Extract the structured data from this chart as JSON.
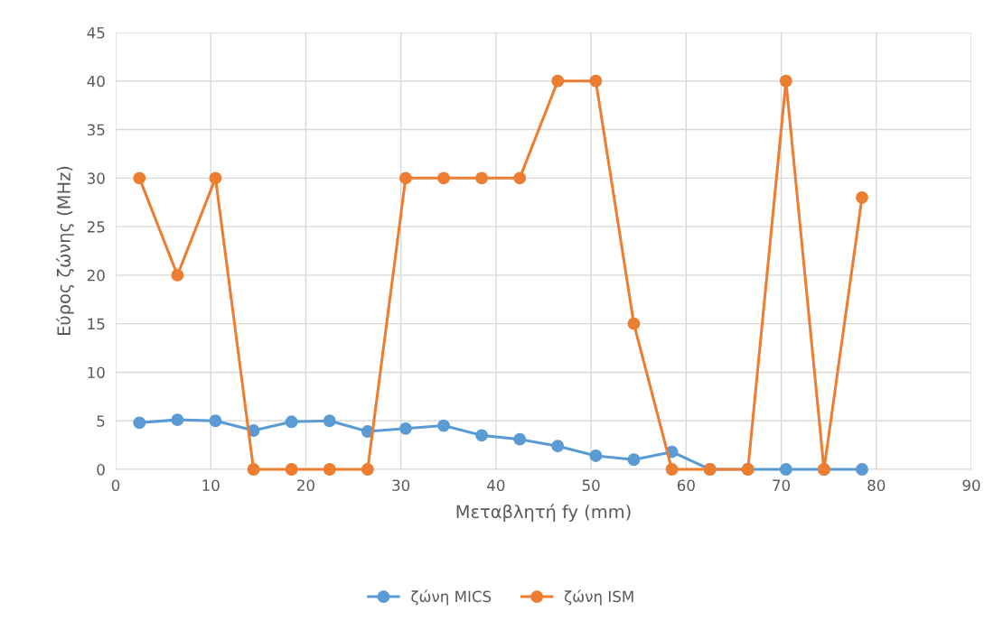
{
  "chart_data": {
    "type": "line",
    "xlabel": "Μεταβλητή fy (mm)",
    "ylabel": "Εύρος ζώνης (MHz)",
    "x": [
      2.5,
      6.5,
      10.5,
      14.5,
      18.5,
      22.5,
      26.5,
      30.5,
      34.5,
      38.5,
      42.5,
      46.5,
      50.5,
      54.5,
      58.5,
      62.5,
      66.5,
      70.5,
      74.5,
      78.5
    ],
    "series": [
      {
        "name": "ζώνη MICS",
        "color": "#5b9bd5",
        "values": [
          4.8,
          5.1,
          5.0,
          4.0,
          4.9,
          5.0,
          3.9,
          4.2,
          4.5,
          3.5,
          3.1,
          2.4,
          1.4,
          1.0,
          1.8,
          0,
          0,
          0,
          0,
          0
        ]
      },
      {
        "name": "ζώνη ISM",
        "color": "#ed7d31",
        "values": [
          30,
          20,
          30,
          0,
          0,
          0,
          0,
          30,
          30,
          30,
          30,
          40,
          40,
          15,
          0,
          0,
          0,
          40,
          0,
          28
        ]
      }
    ],
    "xlim": [
      0,
      90
    ],
    "xticks": [
      0,
      10,
      20,
      30,
      40,
      50,
      60,
      70,
      80,
      90
    ],
    "ylim": [
      0,
      45
    ],
    "yticks": [
      0,
      5,
      10,
      15,
      20,
      25,
      30,
      35,
      40,
      45
    ],
    "grid": true,
    "legend": "bottom",
    "marker": "circle",
    "line_style": "solid"
  }
}
